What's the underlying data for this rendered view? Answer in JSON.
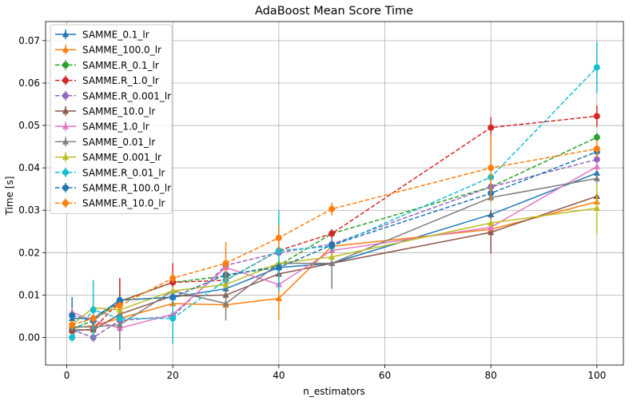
{
  "chart_data": {
    "type": "line",
    "title": "AdaBoost Mean Score Time",
    "xlabel": "n_estimators",
    "ylabel": "Time [s]",
    "xlim": [
      -4,
      105
    ],
    "ylim": [
      -0.0065,
      0.0745
    ],
    "xticks": [
      0,
      20,
      40,
      60,
      80,
      100
    ],
    "yticks": [
      0.0,
      0.01,
      0.02,
      0.03,
      0.04,
      0.05,
      0.06,
      0.07
    ],
    "xtick_labels": [
      "0",
      "20",
      "40",
      "60",
      "80",
      "100"
    ],
    "ytick_labels": [
      "0.00",
      "0.01",
      "0.02",
      "0.03",
      "0.04",
      "0.05",
      "0.06",
      "0.07"
    ],
    "grid": true,
    "legend_position": "top-left",
    "x": [
      1,
      5,
      10,
      20,
      30,
      40,
      50,
      80,
      100
    ],
    "series": [
      {
        "name": "SAMME_0.1_lr",
        "color": "#1f77b4",
        "dashed": false,
        "marker": "triangle",
        "values": [
          0.0045,
          0.0045,
          0.0088,
          0.0095,
          0.0115,
          0.0165,
          0.0175,
          0.029,
          0.0388
        ],
        "errors": [
          0.005,
          0.001,
          0.002,
          0.001,
          0.001,
          0.001,
          0.001,
          0.001,
          0.002
        ]
      },
      {
        "name": "SAMME_100.0_lr",
        "color": "#ff7f0e",
        "dashed": false,
        "marker": "triangle",
        "values": [
          0.0022,
          0.0028,
          0.0045,
          0.008,
          0.0077,
          0.0092,
          0.0215,
          0.0255,
          0.032
        ],
        "errors": [
          0.001,
          0.001,
          0.001,
          0.001,
          0.001,
          0.005,
          0.001,
          0.001,
          0.001
        ]
      },
      {
        "name": "SAMME.R_0.1_lr",
        "color": "#2ca02c",
        "dashed": true,
        "marker": "circle",
        "values": [
          0.002,
          0.004,
          0.0085,
          0.013,
          0.0145,
          0.017,
          0.0245,
          0.0355,
          0.0472
        ],
        "errors": [
          0.002,
          0.002,
          0.0055,
          0.001,
          0.001,
          0.001,
          0.001,
          0.001,
          0.001
        ]
      },
      {
        "name": "SAMME.R_1.0_lr",
        "color": "#d62728",
        "dashed": true,
        "marker": "circle",
        "values": [
          0.0015,
          0.002,
          0.0085,
          0.013,
          0.0135,
          0.0205,
          0.0245,
          0.0495,
          0.0522
        ],
        "errors": [
          0.001,
          0.001,
          0.0055,
          0.0045,
          0.001,
          0.001,
          0.001,
          0.0025,
          0.0025
        ]
      },
      {
        "name": "SAMME.R_0.001_lr",
        "color": "#9467bd",
        "dashed": true,
        "marker": "circle",
        "values": [
          0.0018,
          0.0,
          0.004,
          0.005,
          0.017,
          0.02,
          0.022,
          0.0355,
          0.042
        ],
        "errors": [
          0.001,
          0.001,
          0.001,
          0.001,
          0.001,
          0.001,
          0.001,
          0.001,
          0.001
        ]
      },
      {
        "name": "SAMME_10.0_lr",
        "color": "#8c564b",
        "dashed": false,
        "marker": "triangle",
        "values": [
          0.0018,
          0.0018,
          0.0055,
          0.0098,
          0.01,
          0.015,
          0.0175,
          0.0248,
          0.0333
        ],
        "errors": [
          0.001,
          0.001,
          0.001,
          0.001,
          0.001,
          0.001,
          0.001,
          0.005,
          0.001
        ]
      },
      {
        "name": "SAMME_1.0_lr",
        "color": "#e377c2",
        "dashed": false,
        "marker": "triangle",
        "values": [
          0.006,
          0.004,
          0.0022,
          0.0055,
          0.0165,
          0.0125,
          0.0205,
          0.026,
          0.0403
        ],
        "errors": [
          0.001,
          0.001,
          0.001,
          0.001,
          0.001,
          0.001,
          0.001,
          0.001,
          0.001
        ]
      },
      {
        "name": "SAMME_0.01_lr",
        "color": "#7f7f7f",
        "dashed": false,
        "marker": "triangle",
        "values": [
          0.0025,
          0.0025,
          0.003,
          0.011,
          0.008,
          0.0175,
          0.0175,
          0.033,
          0.0375
        ],
        "errors": [
          0.001,
          0.001,
          0.006,
          0.001,
          0.004,
          0.001,
          0.006,
          0.001,
          0.001
        ]
      },
      {
        "name": "SAMME_0.001_lr",
        "color": "#bcbd22",
        "dashed": false,
        "marker": "triangle",
        "values": [
          0.003,
          0.007,
          0.0065,
          0.011,
          0.0125,
          0.0175,
          0.019,
          0.027,
          0.0305
        ],
        "errors": [
          0.001,
          0.001,
          0.001,
          0.001,
          0.001,
          0.001,
          0.001,
          0.001,
          0.006
        ]
      },
      {
        "name": "SAMME.R_0.01_lr",
        "color": "#17becf",
        "dashed": true,
        "marker": "circle",
        "values": [
          0.0,
          0.0065,
          0.0045,
          0.0045,
          0.0135,
          0.0205,
          0.0215,
          0.0378,
          0.0637
        ],
        "errors": [
          0.001,
          0.007,
          0.001,
          0.006,
          0.001,
          0.0095,
          0.001,
          0.003,
          0.006
        ]
      },
      {
        "name": "SAMME.R_100.0_lr",
        "color": "#1f77b4",
        "dashed": true,
        "marker": "circle",
        "values": [
          0.0052,
          0.004,
          0.0088,
          0.0095,
          0.0148,
          0.0165,
          0.0218,
          0.034,
          0.0438
        ],
        "errors": [
          0.001,
          0.001,
          0.001,
          0.001,
          0.001,
          0.001,
          0.001,
          0.001,
          0.001
        ]
      },
      {
        "name": "SAMME.R_10.0_lr",
        "color": "#ff7f0e",
        "dashed": true,
        "marker": "circle",
        "values": [
          0.003,
          0.0045,
          0.0075,
          0.014,
          0.0175,
          0.0235,
          0.0303,
          0.04,
          0.0445
        ],
        "errors": [
          0.001,
          0.001,
          0.001,
          0.001,
          0.005,
          0.003,
          0.0015,
          0.008,
          0.002
        ]
      }
    ]
  }
}
